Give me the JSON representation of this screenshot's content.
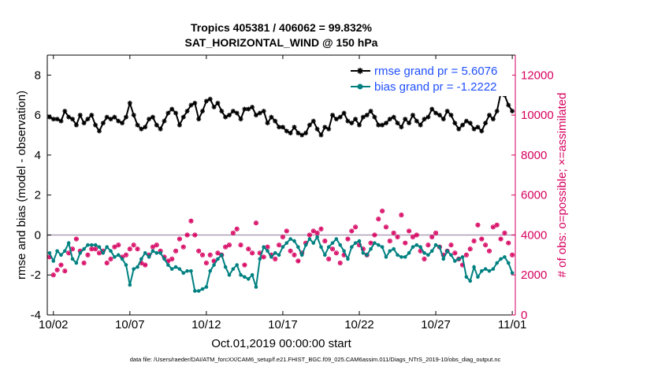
{
  "title_line1": "Tropics 405381 / 406062 = 99.832%",
  "title_line2": "SAT_HORIZONTAL_WIND @ 150 hPa",
  "footer": "data file: /Users/raeder/DAI/ATM_forcXX/CAM6_setup/f.e21.FHIST_BGC.f09_025.CAM6assim.011/Diags_NTrS_2019-10/obs_diag_output.nc",
  "colors": {
    "rmse": "#000000",
    "bias": "#008080",
    "obs": "#d6005f",
    "legend_text": "#1f4fff",
    "zero_line": "#b0a0b8"
  },
  "chart_data": {
    "type": "line",
    "xlabel": "Oct.01,2019 00:00:00 start",
    "ylabel_left": "rmse and bias (model - observation)",
    "ylabel_right": "# of obs: o=possible; ×=assimilated",
    "x_unit": "days since Oct.01 (6-hourly)",
    "xlim": [
      0.6,
      31.2
    ],
    "ylim_left": [
      -4,
      9
    ],
    "ylim_right": [
      0,
      13000
    ],
    "xtick_values": [
      1,
      6,
      11,
      16,
      21,
      26,
      31
    ],
    "xtick_labels": [
      "10/02",
      "10/07",
      "10/12",
      "10/17",
      "10/22",
      "10/27",
      "11/01"
    ],
    "ytick_left_values": [
      -4,
      -2,
      0,
      2,
      4,
      6,
      8
    ],
    "ytick_left_labels": [
      "-4",
      "-2",
      "0",
      "2",
      "4",
      "6",
      "8"
    ],
    "ytick_right_values": [
      0,
      2000,
      4000,
      6000,
      8000,
      10000,
      12000
    ],
    "ytick_right_labels": [
      "0",
      "2000",
      "4000",
      "6000",
      "8000",
      "10000",
      "12000"
    ],
    "legend": [
      {
        "label": "rmse grand pr = 5.6076",
        "series": "rmse"
      },
      {
        "label": "bias grand pr = -1.2222",
        "series": "bias"
      }
    ],
    "series": [
      {
        "name": "rmse",
        "axis": "left",
        "values": [
          5.9,
          5.8,
          5.8,
          5.7,
          6.2,
          5.9,
          5.8,
          5.5,
          6.0,
          5.6,
          5.8,
          6.0,
          5.5,
          5.2,
          5.6,
          5.9,
          5.8,
          5.9,
          5.7,
          5.6,
          5.9,
          6.6,
          6.0,
          5.5,
          5.3,
          5.4,
          5.8,
          5.9,
          5.5,
          5.3,
          5.7,
          6.1,
          6.3,
          6.1,
          5.5,
          5.9,
          6.2,
          6.5,
          6.6,
          5.8,
          6.2,
          6.7,
          6.8,
          6.4,
          6.6,
          6.2,
          5.9,
          6.0,
          6.2,
          6.1,
          5.8,
          6.3,
          6.3,
          6.4,
          6.0,
          6.1,
          6.2,
          5.6,
          5.9,
          5.7,
          5.4,
          5.4,
          5.2,
          5.1,
          5.4,
          5.1,
          5.0,
          5.1,
          5.5,
          5.7,
          5.3,
          5.0,
          5.4,
          5.3,
          6.0,
          5.8,
          5.9,
          6.1,
          5.7,
          5.6,
          5.8,
          5.5,
          5.9,
          6.0,
          6.2,
          5.9,
          5.5,
          5.5,
          5.6,
          5.8,
          5.9,
          5.6,
          5.4,
          5.8,
          5.6,
          6.0,
          5.7,
          5.5,
          5.8,
          5.9,
          6.3,
          6.1,
          6.0,
          5.8,
          6.2,
          6.0,
          5.6,
          5.3,
          5.5,
          5.7,
          5.6,
          5.3,
          5.4,
          5.2,
          5.6,
          6.0,
          5.8,
          6.2,
          7.1,
          7.0,
          6.5,
          6.2,
          5.8,
          5.6,
          5.9,
          6.0,
          5.7,
          5.4,
          5.2,
          5.5,
          5.8,
          5.4,
          5.3,
          5.6,
          5.1,
          5.0,
          5.4,
          5.0,
          5.6,
          5.3,
          5.6,
          5.4,
          5.1,
          5.2,
          5.3,
          5.6,
          5.8,
          5.6,
          5.4,
          5.5,
          5.3,
          4.8,
          5.0,
          5.3,
          5.4,
          5.1,
          5.0,
          5.3,
          5.4,
          5.6,
          5.4,
          5.5,
          5.6,
          5.8,
          5.6,
          5.4,
          5.2,
          5.2,
          5.4,
          5.5,
          5.3,
          5.1,
          5.4,
          5.4,
          5.0,
          5.2,
          5.4,
          5.5,
          5.6,
          5.3,
          5.3,
          5.6,
          5.2,
          5.1,
          5.2,
          5.3,
          5.4,
          5.5,
          5.3,
          5.2,
          5.4,
          5.1,
          5.2,
          5.5,
          5.6,
          5.4,
          5.2,
          5.1,
          5.6,
          5.3,
          5.0,
          5.2,
          5.4,
          5.6,
          5.4,
          5.5,
          5.7,
          5.6,
          5.4,
          5.7,
          5.5,
          5.3,
          5.4,
          5.6,
          5.5,
          5.4,
          5.6,
          5.9,
          5.4,
          5.3,
          5.6,
          6.3,
          5.8,
          5.2,
          5.3,
          5.6,
          5.5,
          5.5,
          5.4,
          5.3,
          5.2,
          5.5,
          5.7,
          5.0,
          5.5,
          5.4,
          5.6,
          5.2,
          5.5,
          5.7,
          5.6,
          5.2,
          5.1,
          5.4,
          5.5,
          5.3,
          5.1,
          5.4,
          5.6,
          5.2,
          5.3,
          5.7,
          5.6,
          5.3,
          5.0,
          5.2,
          5.5,
          5.6,
          5.1,
          4.8,
          4.7,
          5.3,
          5.1,
          5.2,
          5.4,
          5.3,
          5.6,
          5.4,
          5.0,
          4.9,
          5.2,
          5.5,
          5.0,
          5.3,
          5.6,
          5.9,
          5.8,
          6.0,
          5.9,
          5.7,
          5.8,
          5.9,
          6.2
        ]
      },
      {
        "name": "bias",
        "axis": "left",
        "values": [
          -0.9,
          -1.3,
          -0.8,
          -1.0,
          -0.8,
          -0.4,
          -1.2,
          -1.4,
          -0.9,
          -0.7,
          -0.5,
          -0.5,
          -0.5,
          -0.6,
          -0.9,
          -0.6,
          -0.8,
          -1.1,
          -1.0,
          -1.2,
          -1.5,
          -2.5,
          -1.7,
          -1.6,
          -1.2,
          -0.9,
          -1.1,
          -0.8,
          -0.9,
          -0.9,
          -1.2,
          -1.5,
          -1.7,
          -1.6,
          -1.7,
          -1.9,
          -1.8,
          -1.8,
          -2.8,
          -2.8,
          -2.7,
          -2.6,
          -1.8,
          -1.5,
          -1.2,
          -1.0,
          -1.6,
          -2.0,
          -1.7,
          -1.5,
          -2.0,
          -2.1,
          -2.2,
          -2.0,
          -2.6,
          -1.2,
          -0.6,
          -0.8,
          -1.1,
          -0.9,
          -1.0,
          -0.6,
          -0.4,
          -0.2,
          -0.3,
          -0.6,
          -1.0,
          -0.5,
          -0.2,
          -0.4,
          -0.1,
          -0.6,
          -1.0,
          -0.6,
          -0.4,
          -0.2,
          -0.5,
          -0.8,
          -1.2,
          -0.6,
          -0.4,
          -0.3,
          -0.9,
          -1.0,
          -0.7,
          -0.4,
          -0.5,
          -0.6,
          -1.1,
          -0.8,
          -0.7,
          -1.0,
          -1.1,
          -1.1,
          -0.9,
          -0.6,
          -0.5,
          -0.6,
          -0.9,
          -1.0,
          -0.8,
          -0.5,
          -0.6,
          -1.2,
          -0.8,
          -1.0,
          -1.3,
          -1.2,
          -1.1,
          -2.1,
          -2.3,
          -1.6,
          -2.1,
          -1.8,
          -1.7,
          -1.8,
          -1.7,
          -1.4,
          -1.2,
          -1.1,
          -1.4,
          -1.9,
          -2.0,
          -1.6,
          -1.7,
          -1.2,
          -0.7,
          -0.9,
          -1.0,
          -1.4,
          -1.2,
          -1.0,
          -0.8,
          -0.6,
          -0.7,
          -0.6,
          -0.8,
          -0.8,
          -0.9,
          -1.0,
          -0.9,
          -1.2,
          -0.8,
          -0.7,
          -0.9,
          -0.6,
          -0.6,
          -0.8,
          -0.7,
          -0.6,
          -0.6,
          -0.7,
          -0.6,
          -0.8,
          -0.8,
          -0.7,
          -0.6,
          -0.5,
          -0.4,
          -0.6,
          -0.9,
          -1.1,
          -0.9,
          -1.1,
          -1.0,
          -1.0,
          -0.9,
          -0.7,
          -0.5,
          -0.6,
          -0.8,
          -0.9,
          -0.6,
          -0.5,
          -0.4,
          -0.6,
          -0.7,
          -1.1,
          -1.3,
          -1.0,
          -0.8,
          -0.9,
          -0.8,
          -0.9,
          -1.0,
          -1.0,
          -1.1,
          -1.0,
          -0.9,
          -1.2,
          -1.0,
          -0.9,
          -0.7,
          -0.8,
          -1.0,
          -0.9,
          -1.0,
          -1.3,
          -1.4,
          -1.1,
          -0.6,
          -0.9,
          -1.2,
          -1.0,
          -1.0,
          -1.2,
          -1.1,
          -1.4,
          -1.3,
          -0.7,
          -0.5,
          -0.8,
          -1.4,
          -1.0,
          -1.1,
          -1.3,
          -1.2,
          -1.4,
          -1.2,
          -1.6,
          -1.4,
          -1.1,
          -0.9,
          -1.3,
          -1.4,
          -1.2,
          -1.0,
          -0.9,
          -1.0,
          -1.1,
          -1.2,
          -1.0,
          -1.3,
          -1.1,
          -0.9,
          -0.8,
          -1.0,
          -0.9,
          -1.0,
          -1.3,
          -1.1,
          -0.8,
          -1.0,
          -1.1,
          -1.0,
          -0.9,
          -0.7,
          -1.0,
          -1.4,
          -1.4,
          -1.2,
          -0.8,
          -1.0,
          -1.2,
          -1.1,
          -1.0,
          -1.3,
          -0.9,
          -0.9,
          -1.3,
          -1.1,
          -1.4,
          -1.2,
          -0.8,
          -0.4,
          -0.9,
          -1.0,
          -0.7,
          -0.3,
          -0.8,
          -1.4,
          -1.0,
          -0.8,
          -1.2,
          -1.5,
          -1.0,
          -1.3,
          -1.4,
          -1.3,
          -1.6,
          -2.0,
          -1.6,
          -2.0,
          -2.1,
          -2.1,
          -2.0,
          -2.3,
          -2.8
        ]
      },
      {
        "name": "obs",
        "axis": "right",
        "marker": "possible+assimilated",
        "values": [
          2900,
          2000,
          2250,
          2500,
          2200,
          3100,
          3300,
          3800,
          3200,
          2600,
          3000,
          3300,
          3300,
          3100,
          3200,
          2600,
          2800,
          3400,
          3500,
          2900,
          3000,
          3300,
          3500,
          3300,
          2600,
          2500,
          3000,
          3400,
          3500,
          3200,
          2900,
          2700,
          2800,
          3200,
          3800,
          3400,
          4000,
          4700,
          4000,
          3200,
          3000,
          2600,
          3000,
          2700,
          3100,
          3000,
          3400,
          3500,
          4100,
          4300,
          3500,
          2500,
          3300,
          3100,
          4600,
          3100,
          2900,
          3400,
          3000,
          2800,
          3500,
          3900,
          4200,
          3200,
          3000,
          2700,
          3100,
          3600,
          4000,
          4200,
          4100,
          4300,
          3700,
          2800,
          3300,
          3100,
          2600,
          3000,
          3800,
          4200,
          4400,
          3500,
          3300,
          3000,
          3600,
          4000,
          4800,
          5200,
          4400,
          3700,
          4100,
          3900,
          5000,
          3600,
          4200,
          3900,
          4000,
          3200,
          2800,
          3500,
          3900,
          4100,
          3400,
          3000,
          3200,
          3500,
          3100,
          2800,
          2500,
          3000,
          3300,
          3700,
          4500,
          3800,
          3500,
          3200,
          4400,
          4500,
          3800,
          4100,
          3600,
          3000,
          3200,
          2800,
          3300,
          3300,
          3500,
          3100,
          3800,
          5000,
          4300,
          4400,
          3600,
          3000,
          3300,
          3200,
          5000,
          4200,
          3600,
          3100,
          3700,
          3300,
          3200,
          3400,
          3000,
          3300,
          3200,
          3500,
          3200,
          2800,
          3300,
          3100,
          3500,
          3600,
          3600,
          3500,
          3200,
          2900,
          3000,
          3800,
          3600,
          2500,
          2200,
          2300,
          3400,
          4000,
          3900,
          3100,
          3300,
          3500,
          3600,
          3200,
          3500,
          3100,
          3800,
          3900,
          3000,
          3400,
          3000,
          3300,
          3200,
          2800,
          3200,
          3000,
          2500,
          3500,
          3300,
          3100,
          3400,
          3200,
          3000,
          3600,
          3200,
          3800,
          3000,
          3300,
          3700,
          3200,
          2600,
          3000,
          3500,
          3400,
          3800,
          3200,
          2900,
          3400,
          3300,
          3000,
          3700,
          3200,
          2800,
          3300,
          3500,
          3000,
          2700,
          2400,
          3300,
          3700,
          3500,
          3200,
          3000,
          3500,
          3400,
          3200,
          3000,
          3600,
          3700,
          3200,
          3000,
          2500,
          3100,
          3500,
          3400,
          3300,
          3700,
          3800,
          3200,
          3900,
          3300,
          3000,
          3200,
          3500,
          3300,
          2900,
          3300,
          3200,
          3600,
          3000,
          3400,
          3200,
          3100,
          2800,
          3300,
          3500,
          3600,
          3700,
          3200,
          3000,
          2500,
          3300,
          3400,
          3400,
          3200,
          3300,
          3500,
          3600,
          3400,
          3200,
          2900,
          3300,
          3600,
          3800,
          3400,
          3200,
          3000,
          2900,
          3500,
          3700,
          3900,
          3700,
          3900,
          3300,
          3200,
          3500,
          3700,
          3500,
          3200,
          3000,
          6200,
          5300,
          3600,
          2800,
          3200,
          3400,
          3700,
          3900,
          2000
        ]
      }
    ]
  }
}
